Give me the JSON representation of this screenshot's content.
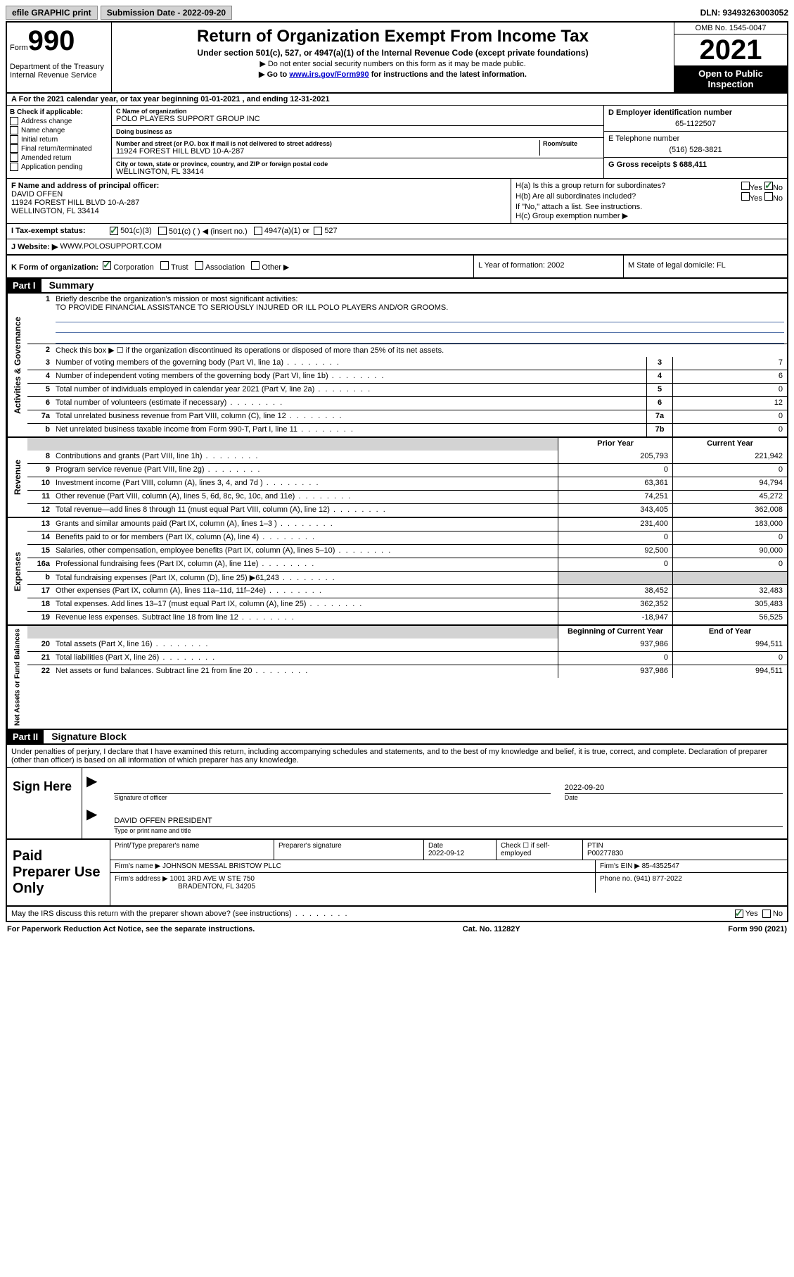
{
  "topbar": {
    "efile": "efile GRAPHIC print",
    "submission_label": "Submission Date - 2022-09-20",
    "dln": "DLN: 93493263003052"
  },
  "header": {
    "form_label": "Form",
    "form_number": "990",
    "dept": "Department of the Treasury Internal Revenue Service",
    "title": "Return of Organization Exempt From Income Tax",
    "subtitle": "Under section 501(c), 527, or 4947(a)(1) of the Internal Revenue Code (except private foundations)",
    "note1": "▶ Do not enter social security numbers on this form as it may be made public.",
    "note2_pre": "▶ Go to ",
    "note2_link": "www.irs.gov/Form990",
    "note2_post": " for instructions and the latest information.",
    "omb": "OMB No. 1545-0047",
    "year": "2021",
    "open_public": "Open to Public Inspection"
  },
  "rowA": "A For the 2021 calendar year, or tax year beginning 01-01-2021   , and ending 12-31-2021",
  "colB": {
    "title": "B Check if applicable:",
    "opts": [
      "Address change",
      "Name change",
      "Initial return",
      "Final return/terminated",
      "Amended return",
      "Application pending"
    ]
  },
  "colC": {
    "name_label": "C Name of organization",
    "name": "POLO PLAYERS SUPPORT GROUP INC",
    "dba_label": "Doing business as",
    "dba": "",
    "addr_label": "Number and street (or P.O. box if mail is not delivered to street address)",
    "room_label": "Room/suite",
    "addr": "11924 FOREST HILL BLVD 10-A-287",
    "city_label": "City or town, state or province, country, and ZIP or foreign postal code",
    "city": "WELLINGTON, FL  33414"
  },
  "colDE": {
    "d_label": "D Employer identification number",
    "d_val": "65-1122507",
    "e_label": "E Telephone number",
    "e_val": "(516) 528-3821",
    "g_label": "G Gross receipts $ 688,411"
  },
  "colF": {
    "label": "F  Name and address of principal officer:",
    "name": "DAVID OFFEN",
    "addr1": "11924 FOREST HILL BLVD 10-A-287",
    "addr2": "WELLINGTON, FL  33414"
  },
  "colH": {
    "ha": "H(a)  Is this a group return for subordinates?",
    "ha_yes": "Yes",
    "ha_no": "No",
    "hb": "H(b)  Are all subordinates included?",
    "hb_yes": "Yes",
    "hb_no": "No",
    "hb_note": "If \"No,\" attach a list. See instructions.",
    "hc": "H(c)  Group exemption number ▶"
  },
  "rowI": {
    "label": "I   Tax-exempt status:",
    "o1": "501(c)(3)",
    "o2": "501(c) (  ) ◀ (insert no.)",
    "o3": "4947(a)(1) or",
    "o4": "527"
  },
  "rowJ": {
    "label": "J   Website: ▶",
    "val": "WWW.POLOSUPPORT.COM"
  },
  "rowK": {
    "label": "K Form of organization:",
    "o1": "Corporation",
    "o2": "Trust",
    "o3": "Association",
    "o4": "Other ▶",
    "L": "L Year of formation: 2002",
    "M": "M State of legal domicile: FL"
  },
  "partI": {
    "tag": "Part I",
    "title": "Summary"
  },
  "gov": {
    "title": "Activities & Governance",
    "l1": "Briefly describe the organization's mission or most significant activities:",
    "mission": "TO PROVIDE FINANCIAL ASSISTANCE TO SERIOUSLY INJURED OR ILL POLO PLAYERS AND/OR GROOMS.",
    "l2": "Check this box ▶ ☐  if the organization discontinued its operations or disposed of more than 25% of its net assets.",
    "rows": [
      {
        "n": "3",
        "label": "Number of voting members of the governing body (Part VI, line 1a)",
        "box": "3",
        "v": "7"
      },
      {
        "n": "4",
        "label": "Number of independent voting members of the governing body (Part VI, line 1b)",
        "box": "4",
        "v": "6"
      },
      {
        "n": "5",
        "label": "Total number of individuals employed in calendar year 2021 (Part V, line 2a)",
        "box": "5",
        "v": "0"
      },
      {
        "n": "6",
        "label": "Total number of volunteers (estimate if necessary)",
        "box": "6",
        "v": "12"
      },
      {
        "n": "7a",
        "label": "Total unrelated business revenue from Part VIII, column (C), line 12",
        "box": "7a",
        "v": "0"
      },
      {
        "n": "b",
        "label": "Net unrelated business taxable income from Form 990-T, Part I, line 11",
        "box": "7b",
        "v": "0"
      }
    ]
  },
  "rev": {
    "title": "Revenue",
    "hdr_prior": "Prior Year",
    "hdr_curr": "Current Year",
    "rows": [
      {
        "n": "8",
        "label": "Contributions and grants (Part VIII, line 1h)",
        "p": "205,793",
        "c": "221,942"
      },
      {
        "n": "9",
        "label": "Program service revenue (Part VIII, line 2g)",
        "p": "0",
        "c": "0"
      },
      {
        "n": "10",
        "label": "Investment income (Part VIII, column (A), lines 3, 4, and 7d )",
        "p": "63,361",
        "c": "94,794"
      },
      {
        "n": "11",
        "label": "Other revenue (Part VIII, column (A), lines 5, 6d, 8c, 9c, 10c, and 11e)",
        "p": "74,251",
        "c": "45,272"
      },
      {
        "n": "12",
        "label": "Total revenue—add lines 8 through 11 (must equal Part VIII, column (A), line 12)",
        "p": "343,405",
        "c": "362,008"
      }
    ]
  },
  "exp": {
    "title": "Expenses",
    "rows": [
      {
        "n": "13",
        "label": "Grants and similar amounts paid (Part IX, column (A), lines 1–3 )",
        "p": "231,400",
        "c": "183,000"
      },
      {
        "n": "14",
        "label": "Benefits paid to or for members (Part IX, column (A), line 4)",
        "p": "0",
        "c": "0"
      },
      {
        "n": "15",
        "label": "Salaries, other compensation, employee benefits (Part IX, column (A), lines 5–10)",
        "p": "92,500",
        "c": "90,000"
      },
      {
        "n": "16a",
        "label": "Professional fundraising fees (Part IX, column (A), line 11e)",
        "p": "0",
        "c": "0"
      },
      {
        "n": "b",
        "label": "Total fundraising expenses (Part IX, column (D), line 25) ▶61,243",
        "p": "",
        "c": "",
        "gray": true
      },
      {
        "n": "17",
        "label": "Other expenses (Part IX, column (A), lines 11a–11d, 11f–24e)",
        "p": "38,452",
        "c": "32,483"
      },
      {
        "n": "18",
        "label": "Total expenses. Add lines 13–17 (must equal Part IX, column (A), line 25)",
        "p": "362,352",
        "c": "305,483"
      },
      {
        "n": "19",
        "label": "Revenue less expenses. Subtract line 18 from line 12",
        "p": "-18,947",
        "c": "56,525"
      }
    ]
  },
  "net": {
    "title": "Net Assets or Fund Balances",
    "hdr_prior": "Beginning of Current Year",
    "hdr_curr": "End of Year",
    "rows": [
      {
        "n": "20",
        "label": "Total assets (Part X, line 16)",
        "p": "937,986",
        "c": "994,511"
      },
      {
        "n": "21",
        "label": "Total liabilities (Part X, line 26)",
        "p": "0",
        "c": "0"
      },
      {
        "n": "22",
        "label": "Net assets or fund balances. Subtract line 21 from line 20",
        "p": "937,986",
        "c": "994,511"
      }
    ]
  },
  "partII": {
    "tag": "Part II",
    "title": "Signature Block",
    "penalty": "Under penalties of perjury, I declare that I have examined this return, including accompanying schedules and statements, and to the best of my knowledge and belief, it is true, correct, and complete. Declaration of preparer (other than officer) is based on all information of which preparer has any knowledge."
  },
  "sign": {
    "label": "Sign Here",
    "sig_caption": "Signature of officer",
    "date_caption": "Date",
    "date": "2022-09-20",
    "name": "DAVID OFFEN  PRESIDENT",
    "name_caption": "Type or print name and title"
  },
  "prep": {
    "label": "Paid Preparer Use Only",
    "h1": "Print/Type preparer's name",
    "h2": "Preparer's signature",
    "h3": "Date",
    "h3v": "2022-09-12",
    "h4": "Check ☐ if self-employed",
    "h5": "PTIN",
    "h5v": "P00277830",
    "firm_name_l": "Firm's name    ▶",
    "firm_name": "JOHNSON MESSAL BRISTOW PLLC",
    "firm_ein_l": "Firm's EIN ▶",
    "firm_ein": "85-4352547",
    "firm_addr_l": "Firm's address ▶",
    "firm_addr1": "1001 3RD AVE W STE 750",
    "firm_addr2": "BRADENTON, FL 34205",
    "phone_l": "Phone no.",
    "phone": "(941) 877-2022"
  },
  "footer": {
    "discuss": "May the IRS discuss this return with the preparer shown above? (see instructions)",
    "yes": "Yes",
    "no": "No",
    "pra": "For Paperwork Reduction Act Notice, see the separate instructions.",
    "cat": "Cat. No. 11282Y",
    "form": "Form 990 (2021)"
  }
}
